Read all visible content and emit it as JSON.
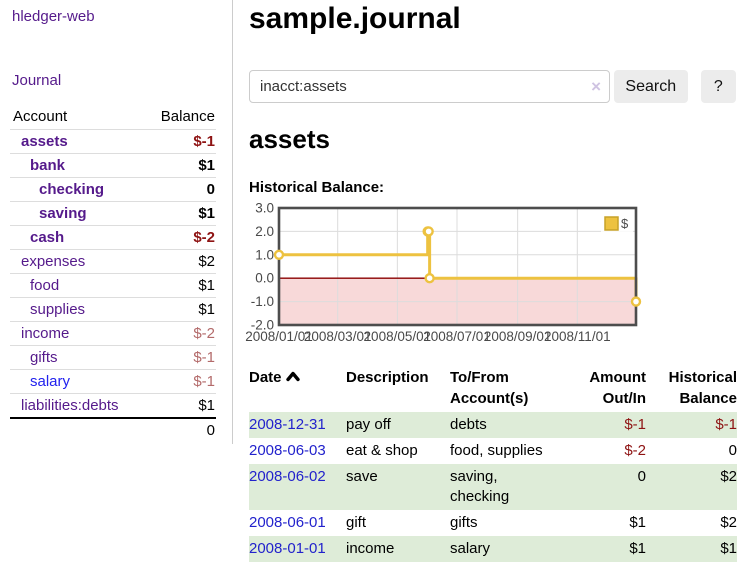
{
  "colors": {
    "link_purple": "#551a8b",
    "link_blue": "#2222cc",
    "negative_strong": "#8e1313",
    "negative_soft": "#b36a6a",
    "row_stripe_green": "#deecd8",
    "chart_line": "#edc240",
    "chart_zero_line": "#8b0000",
    "chart_negative_fill": "#f8d9d9",
    "chart_grid": "#dcdcdc",
    "chart_border": "#4d4d4d",
    "chart_tick_text": "#494949"
  },
  "sidebar": {
    "brand": "hledger-web",
    "nav": {
      "journal": "Journal"
    },
    "table": {
      "account_header": "Account",
      "balance_header": "Balance"
    },
    "accounts": [
      {
        "name": "assets",
        "balance": "$-1"
      },
      {
        "name": "bank",
        "balance": "$1"
      },
      {
        "name": "checking",
        "balance": "0"
      },
      {
        "name": "saving",
        "balance": "$1"
      },
      {
        "name": "cash",
        "balance": "$-2"
      },
      {
        "name": "expenses",
        "balance": "$2"
      },
      {
        "name": "food",
        "balance": "$1"
      },
      {
        "name": "supplies",
        "balance": "$1"
      },
      {
        "name": "income",
        "balance": "$-2"
      },
      {
        "name": "gifts",
        "balance": "$-1"
      },
      {
        "name": "salary",
        "balance": "$-1"
      },
      {
        "name": "liabilities:debts",
        "balance": "$1"
      }
    ],
    "total_balance": "0"
  },
  "main": {
    "title": "sample.journal",
    "search": {
      "value": "inacct:assets",
      "clear_icon": "×",
      "search_button": "Search",
      "help_button": "?"
    },
    "account_heading": "assets",
    "chart_title": "Historical Balance:"
  },
  "chart_data": {
    "type": "line",
    "step": true,
    "title": "Historical Balance of assets",
    "series": [
      {
        "name": "$",
        "points": [
          {
            "date": "2008-01-01",
            "value": 1
          },
          {
            "date": "2008-06-01",
            "value": 2
          },
          {
            "date": "2008-06-02",
            "value": 2
          },
          {
            "date": "2008-06-03",
            "value": 0
          },
          {
            "date": "2008-12-31",
            "value": -1
          }
        ]
      }
    ],
    "x_range": [
      "2008-01-01",
      "2008-12-31"
    ],
    "x_ticks": [
      "2008/01/01",
      "2008/03/01",
      "2008/05/01",
      "2008/07/01",
      "2008/09/01",
      "2008/11/01"
    ],
    "y_ticks": [
      "3.0",
      "2.0",
      "1.0",
      "0.0",
      "-1.0",
      "-2.0"
    ],
    "ylim": [
      -2,
      3
    ],
    "grid": true,
    "legend": {
      "position": "top-right",
      "label": "$"
    }
  },
  "register": {
    "columns": {
      "date": "Date",
      "description": "Description",
      "tofrom": "To/From Account(s)",
      "amount": "Amount Out/In",
      "balance": "Historical Balance"
    },
    "rows": [
      {
        "date": "2008-12-31",
        "description": "pay off",
        "accounts": "debts",
        "amount": "$-1",
        "balance": "$-1"
      },
      {
        "date": "2008-06-03",
        "description": "eat & shop",
        "accounts": "food, supplies",
        "amount": "$-2",
        "balance": "0"
      },
      {
        "date": "2008-06-02",
        "description": "save",
        "accounts": "saving, checking",
        "amount": "0",
        "balance": "$2"
      },
      {
        "date": "2008-06-01",
        "description": "gift",
        "accounts": "gifts",
        "amount": "$1",
        "balance": "$2"
      },
      {
        "date": "2008-01-01",
        "description": "income",
        "accounts": "salary",
        "amount": "$1",
        "balance": "$1"
      }
    ]
  }
}
